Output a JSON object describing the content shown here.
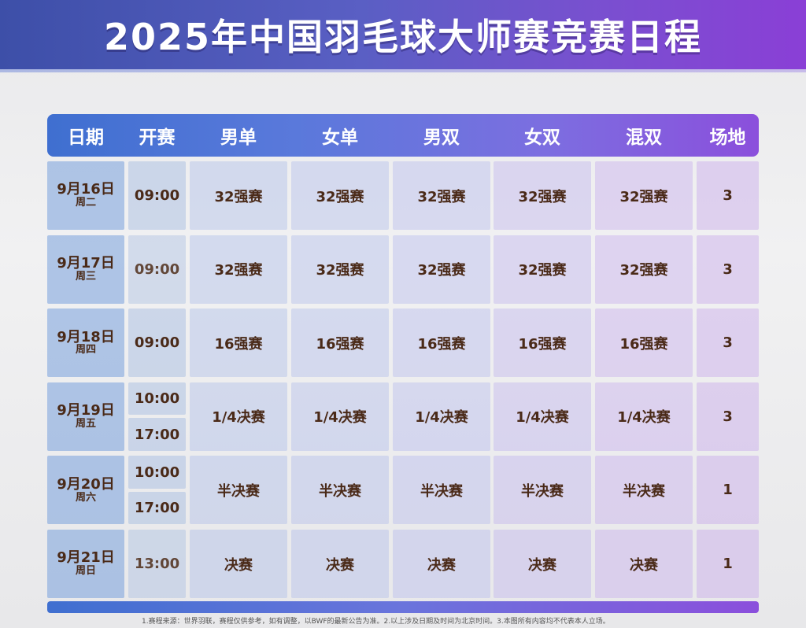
{
  "title": "2025年中国羽毛球大师赛竞赛日程",
  "header": [
    "日期",
    "开赛",
    "男单",
    "女单",
    "男双",
    "女双",
    "混双",
    "场地"
  ],
  "rows": [
    {
      "date": "9月16日",
      "weekday": "周二",
      "times": [
        "09:00"
      ],
      "stage": "32强赛",
      "court": "3"
    },
    {
      "date": "9月17日",
      "weekday": "周三",
      "times": [
        "09:00"
      ],
      "stage": "32强赛",
      "court": "3"
    },
    {
      "date": "9月18日",
      "weekday": "周四",
      "times": [
        "09:00"
      ],
      "stage": "16强赛",
      "court": "3"
    },
    {
      "date": "9月19日",
      "weekday": "周五",
      "times": [
        "10:00",
        "17:00"
      ],
      "stage": "1/4决赛",
      "court": "3"
    },
    {
      "date": "9月20日",
      "weekday": "周六",
      "times": [
        "10:00",
        "17:00"
      ],
      "stage": "半决赛",
      "court": "1"
    },
    {
      "date": "9月21日",
      "weekday": "周日",
      "times": [
        "13:00"
      ],
      "stage": "决赛",
      "court": "1"
    }
  ],
  "footnote": "1.赛程来源：世界羽联，赛程仅供参考，如有调整，以BWF的最新公告为准。2.以上涉及日期及时间为北京时间。3.本图所有内容均不代表本人立场。",
  "colors": {
    "header_start": "#3f6fd0",
    "header_end": "#8b4fdc",
    "text": "#4a2a18"
  }
}
